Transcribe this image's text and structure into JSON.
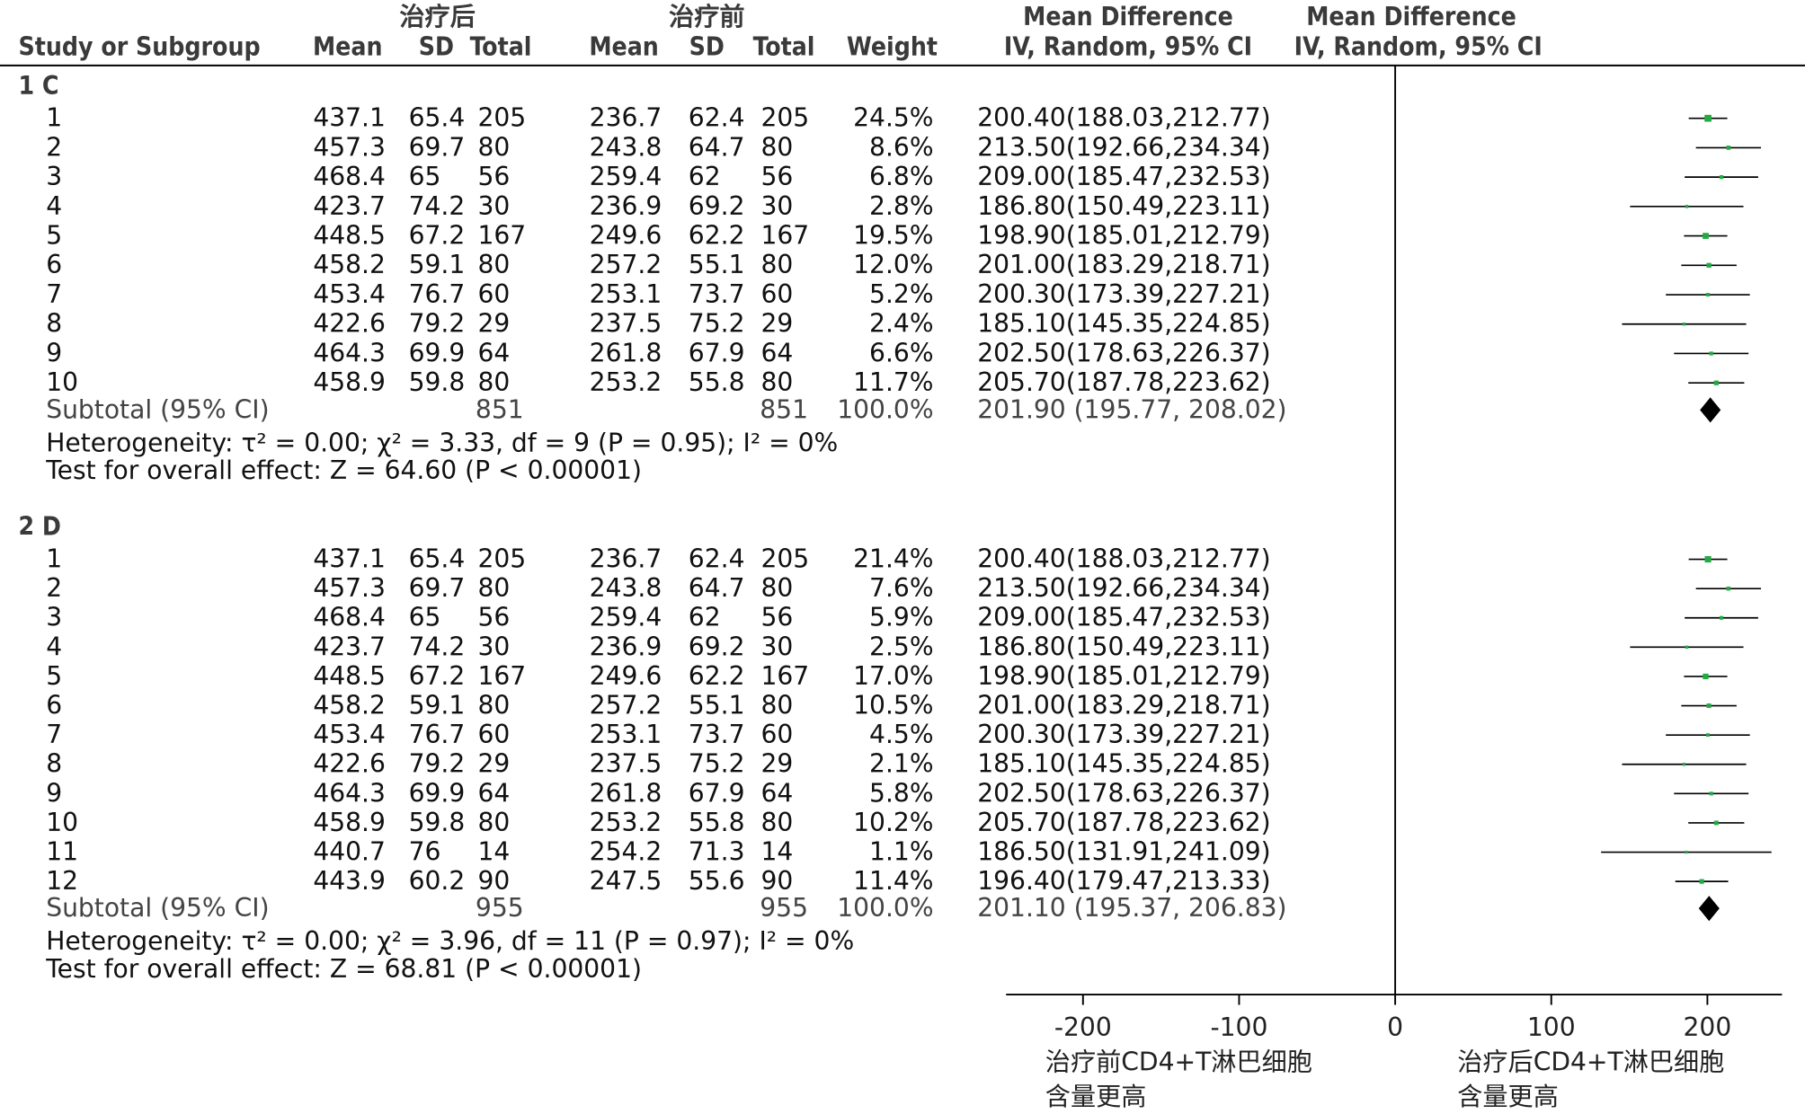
{
  "columns": {
    "study": "Study or Subgroup",
    "group_after": "治疗后",
    "group_before": "治疗前",
    "mean": "Mean",
    "sd": "SD",
    "total": "Total",
    "weight": "Weight",
    "effect_top": "Mean Difference",
    "effect_bottom": "IV, Random, 95% CI"
  },
  "colors": {
    "marker": "#22aa44",
    "diamond": "#000000",
    "line": "#000000"
  },
  "chart_data": {
    "type": "forest",
    "xlim": [
      -250,
      250
    ],
    "xticks": [
      -200,
      -100,
      0,
      100,
      200
    ],
    "axis_labels": {
      "left_line1": "治疗前CD4+T淋巴细胞",
      "left_line2": "含量更高",
      "right_line1": "治疗后CD4+T淋巴细胞",
      "right_line2": "含量更高"
    },
    "subgroups": [
      {
        "label": "1 C",
        "studies": [
          {
            "id": "1",
            "mean_after": "437.1",
            "sd_after": "65.4",
            "total_after": "205",
            "mean_before": "236.7",
            "sd_before": "62.4",
            "total_before": "205",
            "weight": "24.5%",
            "ci_text": "200.40(188.03,212.77)",
            "md": 200.4,
            "lo": 188.03,
            "hi": 212.77
          },
          {
            "id": "2",
            "mean_after": "457.3",
            "sd_after": "69.7",
            "total_after": "80",
            "mean_before": "243.8",
            "sd_before": "64.7",
            "total_before": "80",
            "weight": "8.6%",
            "ci_text": "213.50(192.66,234.34)",
            "md": 213.5,
            "lo": 192.66,
            "hi": 234.34
          },
          {
            "id": "3",
            "mean_after": "468.4",
            "sd_after": "65",
            "total_after": "56",
            "mean_before": "259.4",
            "sd_before": "62",
            "total_before": "56",
            "weight": "6.8%",
            "ci_text": "209.00(185.47,232.53)",
            "md": 209.0,
            "lo": 185.47,
            "hi": 232.53
          },
          {
            "id": "4",
            "mean_after": "423.7",
            "sd_after": "74.2",
            "total_after": "30",
            "mean_before": "236.9",
            "sd_before": "69.2",
            "total_before": "30",
            "weight": "2.8%",
            "ci_text": "186.80(150.49,223.11)",
            "md": 186.8,
            "lo": 150.49,
            "hi": 223.11
          },
          {
            "id": "5",
            "mean_after": "448.5",
            "sd_after": "67.2",
            "total_after": "167",
            "mean_before": "249.6",
            "sd_before": "62.2",
            "total_before": "167",
            "weight": "19.5%",
            "ci_text": "198.90(185.01,212.79)",
            "md": 198.9,
            "lo": 185.01,
            "hi": 212.79
          },
          {
            "id": "6",
            "mean_after": "458.2",
            "sd_after": "59.1",
            "total_after": "80",
            "mean_before": "257.2",
            "sd_before": "55.1",
            "total_before": "80",
            "weight": "12.0%",
            "ci_text": "201.00(183.29,218.71)",
            "md": 201.0,
            "lo": 183.29,
            "hi": 218.71
          },
          {
            "id": "7",
            "mean_after": "453.4",
            "sd_after": "76.7",
            "total_after": "60",
            "mean_before": "253.1",
            "sd_before": "73.7",
            "total_before": "60",
            "weight": "5.2%",
            "ci_text": "200.30(173.39,227.21)",
            "md": 200.3,
            "lo": 173.39,
            "hi": 227.21
          },
          {
            "id": "8",
            "mean_after": "422.6",
            "sd_after": "79.2",
            "total_after": "29",
            "mean_before": "237.5",
            "sd_before": "75.2",
            "total_before": "29",
            "weight": "2.4%",
            "ci_text": "185.10(145.35,224.85)",
            "md": 185.1,
            "lo": 145.35,
            "hi": 224.85
          },
          {
            "id": "9",
            "mean_after": "464.3",
            "sd_after": "69.9",
            "total_after": "64",
            "mean_before": "261.8",
            "sd_before": "67.9",
            "total_before": "64",
            "weight": "6.6%",
            "ci_text": "202.50(178.63,226.37)",
            "md": 202.5,
            "lo": 178.63,
            "hi": 226.37
          },
          {
            "id": "10",
            "mean_after": "458.9",
            "sd_after": "59.8",
            "total_after": "80",
            "mean_before": "253.2",
            "sd_before": "55.8",
            "total_before": "80",
            "weight": "11.7%",
            "ci_text": "205.70(187.78,223.62)",
            "md": 205.7,
            "lo": 187.78,
            "hi": 223.62
          }
        ],
        "subtotal": {
          "label": "Subtotal (95% CI)",
          "total_after": "851",
          "total_before": "851",
          "weight": "100.0%",
          "ci_text": "201.90 (195.77, 208.02)",
          "md": 201.9,
          "lo": 195.77,
          "hi": 208.02
        },
        "heterogeneity": "Heterogeneity: τ² = 0.00; χ² = 3.33, df = 9 (P = 0.95); I² = 0%",
        "overall": "Test for overall effect: Z = 64.60 (P < 0.00001)"
      },
      {
        "label": "2 D",
        "studies": [
          {
            "id": "1",
            "mean_after": "437.1",
            "sd_after": "65.4",
            "total_after": "205",
            "mean_before": "236.7",
            "sd_before": "62.4",
            "total_before": "205",
            "weight": "21.4%",
            "ci_text": "200.40(188.03,212.77)",
            "md": 200.4,
            "lo": 188.03,
            "hi": 212.77
          },
          {
            "id": "2",
            "mean_after": "457.3",
            "sd_after": "69.7",
            "total_after": "80",
            "mean_before": "243.8",
            "sd_before": "64.7",
            "total_before": "80",
            "weight": "7.6%",
            "ci_text": "213.50(192.66,234.34)",
            "md": 213.5,
            "lo": 192.66,
            "hi": 234.34
          },
          {
            "id": "3",
            "mean_after": "468.4",
            "sd_after": "65",
            "total_after": "56",
            "mean_before": "259.4",
            "sd_before": "62",
            "total_before": "56",
            "weight": "5.9%",
            "ci_text": "209.00(185.47,232.53)",
            "md": 209.0,
            "lo": 185.47,
            "hi": 232.53
          },
          {
            "id": "4",
            "mean_after": "423.7",
            "sd_after": "74.2",
            "total_after": "30",
            "mean_before": "236.9",
            "sd_before": "69.2",
            "total_before": "30",
            "weight": "2.5%",
            "ci_text": "186.80(150.49,223.11)",
            "md": 186.8,
            "lo": 150.49,
            "hi": 223.11
          },
          {
            "id": "5",
            "mean_after": "448.5",
            "sd_after": "67.2",
            "total_after": "167",
            "mean_before": "249.6",
            "sd_before": "62.2",
            "total_before": "167",
            "weight": "17.0%",
            "ci_text": "198.90(185.01,212.79)",
            "md": 198.9,
            "lo": 185.01,
            "hi": 212.79
          },
          {
            "id": "6",
            "mean_after": "458.2",
            "sd_after": "59.1",
            "total_after": "80",
            "mean_before": "257.2",
            "sd_before": "55.1",
            "total_before": "80",
            "weight": "10.5%",
            "ci_text": "201.00(183.29,218.71)",
            "md": 201.0,
            "lo": 183.29,
            "hi": 218.71
          },
          {
            "id": "7",
            "mean_after": "453.4",
            "sd_after": "76.7",
            "total_after": "60",
            "mean_before": "253.1",
            "sd_before": "73.7",
            "total_before": "60",
            "weight": "4.5%",
            "ci_text": "200.30(173.39,227.21)",
            "md": 200.3,
            "lo": 173.39,
            "hi": 227.21
          },
          {
            "id": "8",
            "mean_after": "422.6",
            "sd_after": "79.2",
            "total_after": "29",
            "mean_before": "237.5",
            "sd_before": "75.2",
            "total_before": "29",
            "weight": "2.1%",
            "ci_text": "185.10(145.35,224.85)",
            "md": 185.1,
            "lo": 145.35,
            "hi": 224.85
          },
          {
            "id": "9",
            "mean_after": "464.3",
            "sd_after": "69.9",
            "total_after": "64",
            "mean_before": "261.8",
            "sd_before": "67.9",
            "total_before": "64",
            "weight": "5.8%",
            "ci_text": "202.50(178.63,226.37)",
            "md": 202.5,
            "lo": 178.63,
            "hi": 226.37
          },
          {
            "id": "10",
            "mean_after": "458.9",
            "sd_after": "59.8",
            "total_after": "80",
            "mean_before": "253.2",
            "sd_before": "55.8",
            "total_before": "80",
            "weight": "10.2%",
            "ci_text": "205.70(187.78,223.62)",
            "md": 205.7,
            "lo": 187.78,
            "hi": 223.62
          },
          {
            "id": "11",
            "mean_after": "440.7",
            "sd_after": "76",
            "total_after": "14",
            "mean_before": "254.2",
            "sd_before": "71.3",
            "total_before": "14",
            "weight": "1.1%",
            "ci_text": "186.50(131.91,241.09)",
            "md": 186.5,
            "lo": 131.91,
            "hi": 241.09
          },
          {
            "id": "12",
            "mean_after": "443.9",
            "sd_after": "60.2",
            "total_after": "90",
            "mean_before": "247.5",
            "sd_before": "55.6",
            "total_before": "90",
            "weight": "11.4%",
            "ci_text": "196.40(179.47,213.33)",
            "md": 196.4,
            "lo": 179.47,
            "hi": 213.33
          }
        ],
        "subtotal": {
          "label": "Subtotal (95% CI)",
          "total_after": "955",
          "total_before": "955",
          "weight": "100.0%",
          "ci_text": "201.10 (195.37, 206.83)",
          "md": 201.1,
          "lo": 195.37,
          "hi": 206.83
        },
        "heterogeneity": "Heterogeneity: τ² = 0.00; χ² = 3.96, df = 11 (P = 0.97); I² = 0%",
        "overall": "Test for overall effect: Z = 68.81 (P < 0.00001)"
      }
    ]
  }
}
